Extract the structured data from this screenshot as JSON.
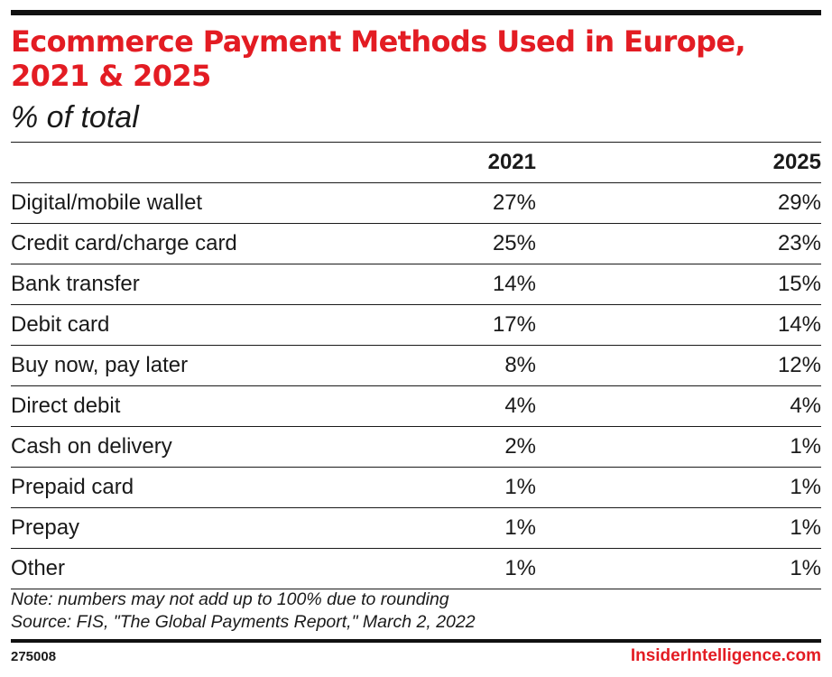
{
  "chart_data": {
    "type": "table",
    "title": "Ecommerce Payment Methods Used in Europe, 2021 & 2025",
    "subtitle": "% of total",
    "columns": [
      "",
      "2021",
      "2025"
    ],
    "rows": [
      {
        "label": "Digital/mobile wallet",
        "v2021": "27%",
        "v2025": "29%"
      },
      {
        "label": "Credit card/charge card",
        "v2021": "25%",
        "v2025": "23%"
      },
      {
        "label": "Bank transfer",
        "v2021": "14%",
        "v2025": "15%"
      },
      {
        "label": "Debit card",
        "v2021": "17%",
        "v2025": "14%"
      },
      {
        "label": "Buy now, pay later",
        "v2021": "8%",
        "v2025": "12%"
      },
      {
        "label": "Direct debit",
        "v2021": "4%",
        "v2025": "4%"
      },
      {
        "label": "Cash on delivery",
        "v2021": "2%",
        "v2025": "1%"
      },
      {
        "label": "Prepaid card",
        "v2021": "1%",
        "v2025": "1%"
      },
      {
        "label": "Prepay",
        "v2021": "1%",
        "v2025": "1%"
      },
      {
        "label": "Other",
        "v2021": "1%",
        "v2025": "1%"
      }
    ],
    "note": "Note: numbers may not add up to 100% due to rounding",
    "source": "Source: FIS, \"The Global Payments Report,\" March 2, 2022"
  },
  "footer": {
    "chart_id": "275008",
    "brand": "InsiderIntelligence.com"
  },
  "colors": {
    "accent": "#e31c23",
    "text": "#1a1a1a",
    "rule": "#111111"
  }
}
